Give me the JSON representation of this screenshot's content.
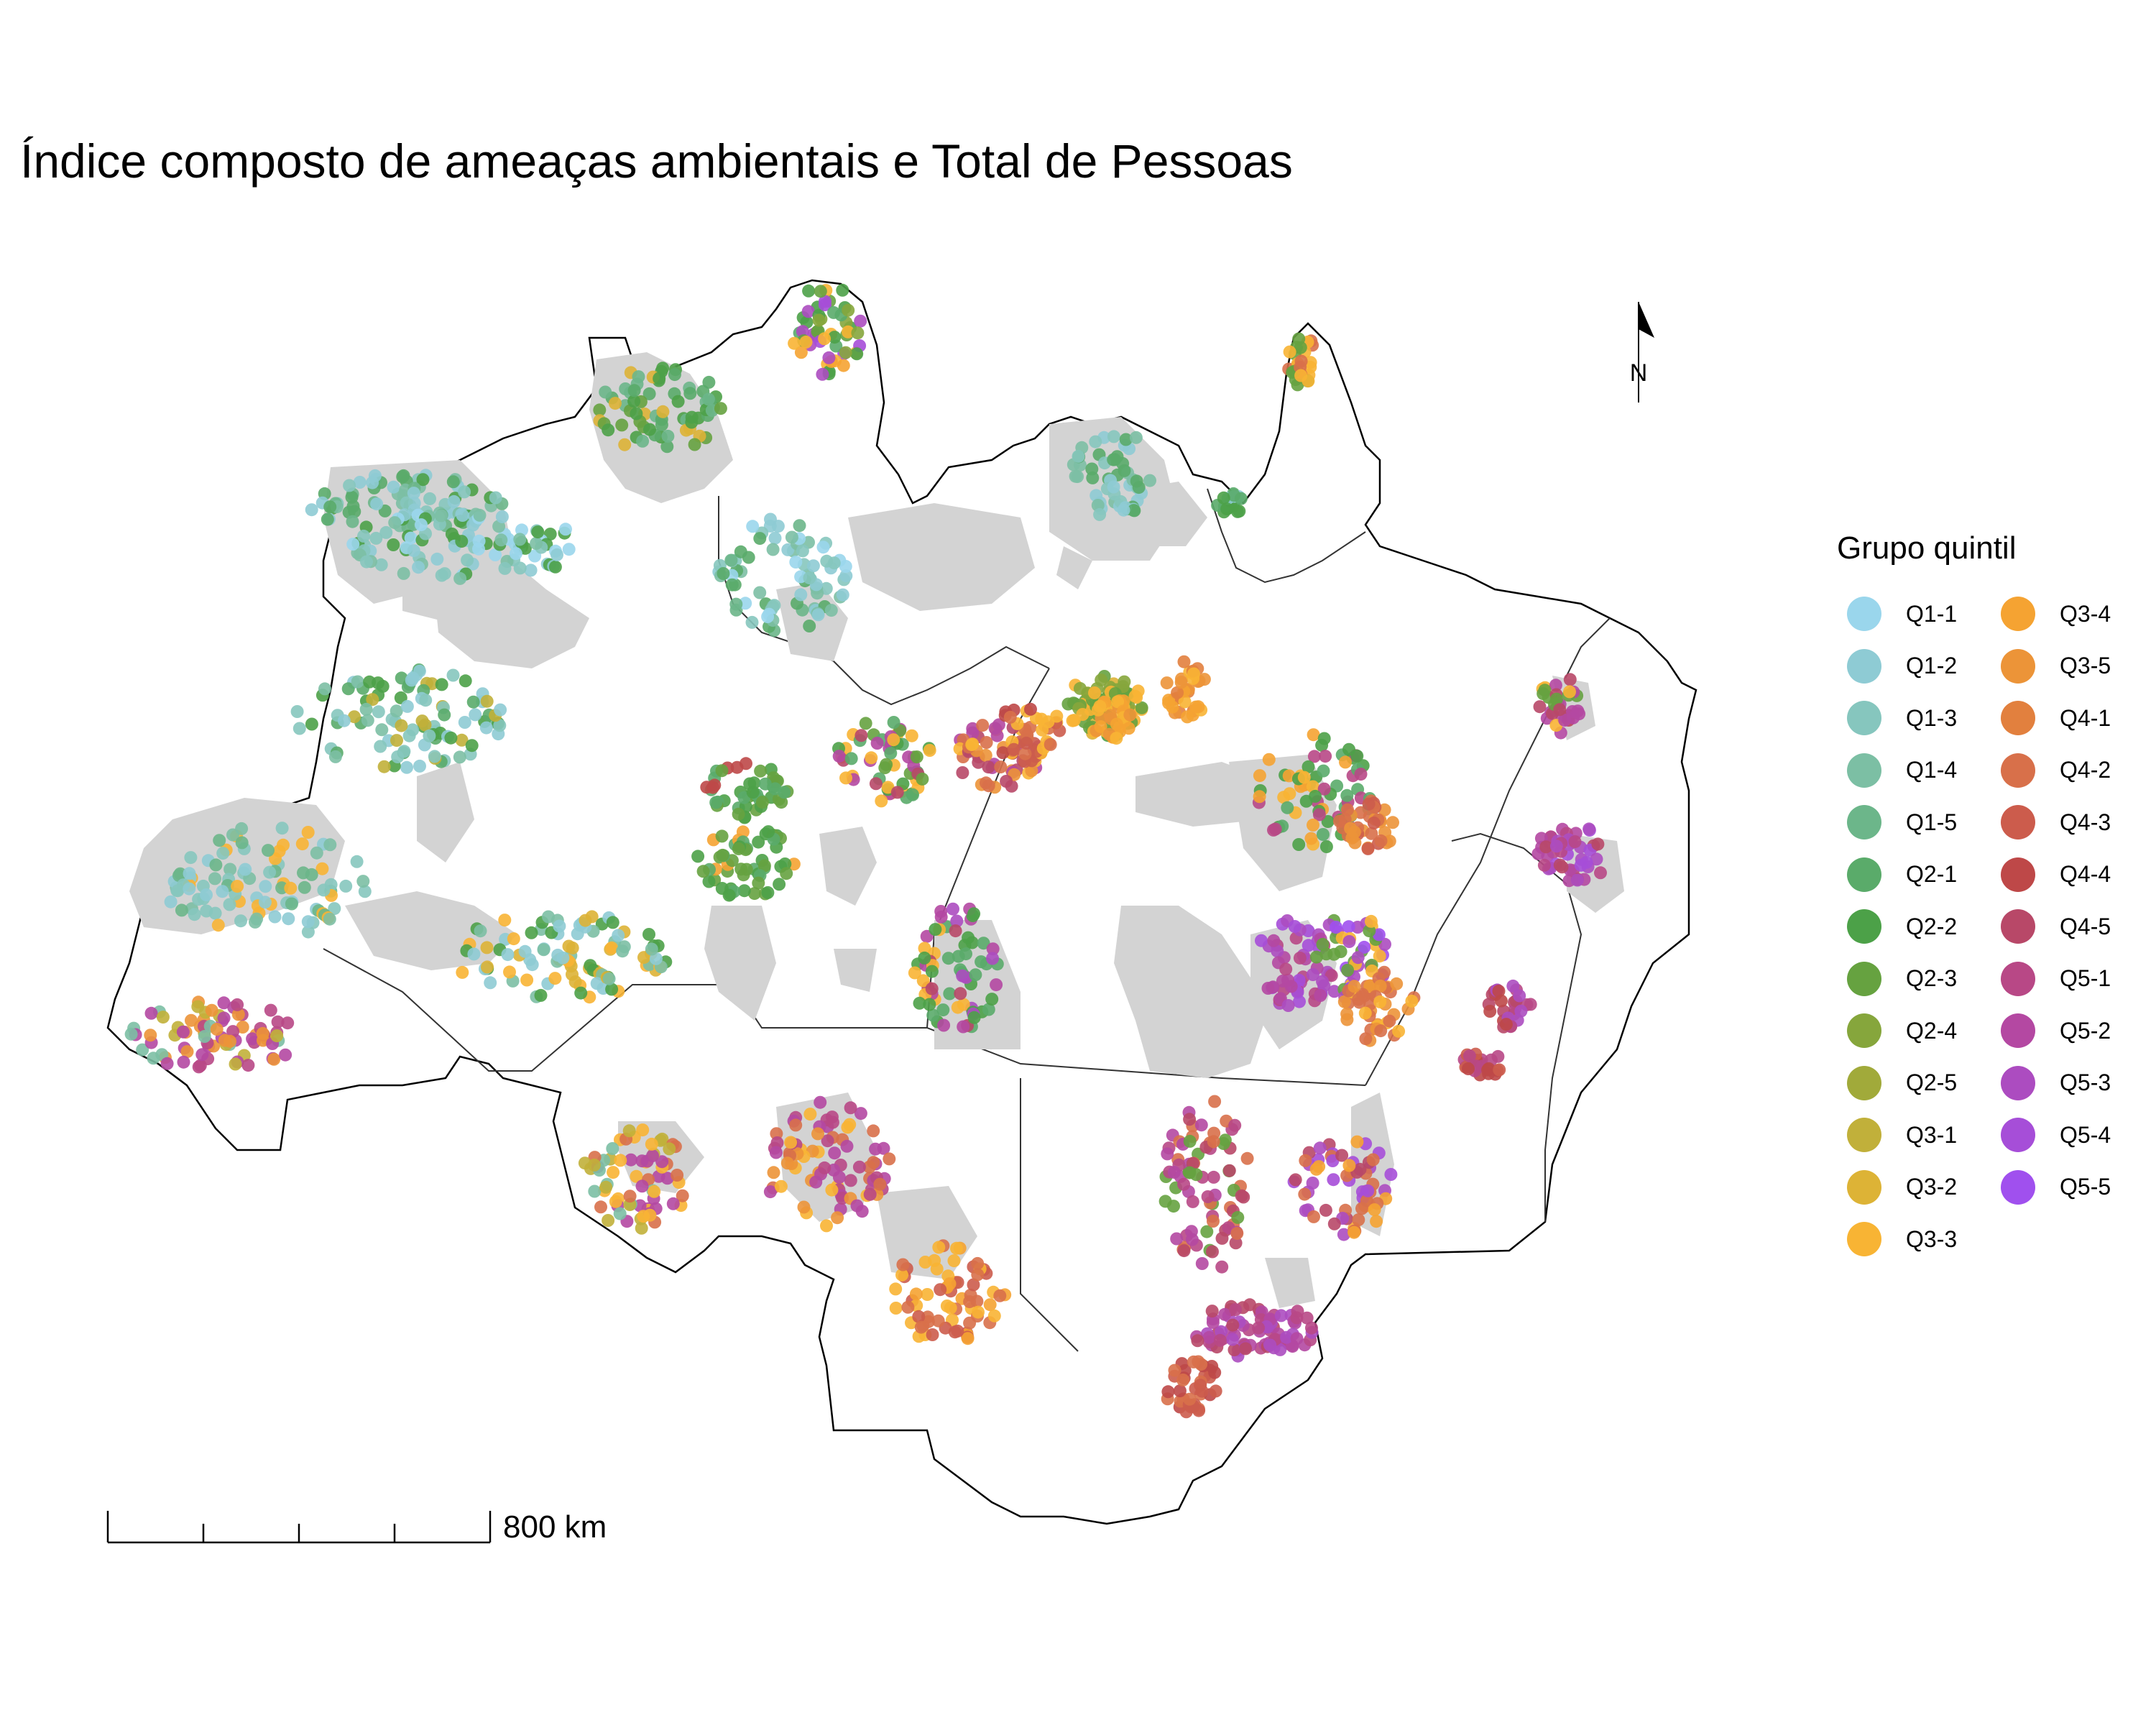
{
  "title": "Índice composto de ameaças ambientais e Total de Pessoas",
  "legend": {
    "title": "Grupo quintil",
    "items": [
      {
        "label": "Q1-1",
        "color": "#9ad6ec"
      },
      {
        "label": "Q1-2",
        "color": "#8ecbd4"
      },
      {
        "label": "Q1-3",
        "color": "#86c6be"
      },
      {
        "label": "Q1-4",
        "color": "#7cbfa4"
      },
      {
        "label": "Q1-5",
        "color": "#6cb68a"
      },
      {
        "label": "Q2-1",
        "color": "#5aab6a"
      },
      {
        "label": "Q2-2",
        "color": "#4ca148"
      },
      {
        "label": "Q2-3",
        "color": "#66a240"
      },
      {
        "label": "Q2-4",
        "color": "#86a63c"
      },
      {
        "label": "Q2-5",
        "color": "#a1aa3a"
      },
      {
        "label": "Q3-1",
        "color": "#c1b03a"
      },
      {
        "label": "Q3-2",
        "color": "#ddb336"
      },
      {
        "label": "Q3-3",
        "color": "#f8b434"
      },
      {
        "label": "Q3-4",
        "color": "#f5a332"
      },
      {
        "label": "Q3-5",
        "color": "#ec9438"
      },
      {
        "label": "Q4-1",
        "color": "#e2803e"
      },
      {
        "label": "Q4-2",
        "color": "#d8704a"
      },
      {
        "label": "Q4-3",
        "color": "#cc5c4c"
      },
      {
        "label": "Q4-4",
        "color": "#be4848"
      },
      {
        "label": "Q4-5",
        "color": "#b84868"
      },
      {
        "label": "Q5-1",
        "color": "#b84886"
      },
      {
        "label": "Q5-2",
        "color": "#b448a2"
      },
      {
        "label": "Q5-3",
        "color": "#ac4cc0"
      },
      {
        "label": "Q5-4",
        "color": "#a64ed8"
      },
      {
        "label": "Q5-5",
        "color": "#a050ee"
      }
    ]
  },
  "scale_bar": {
    "label": "800 km"
  },
  "north_arrow": {
    "label": "N",
    "icon": "north-arrow-icon"
  },
  "colors": {
    "background": "#ffffff",
    "protected_area_fill": "#d3d3d3",
    "boundary_stroke": "#000000"
  }
}
